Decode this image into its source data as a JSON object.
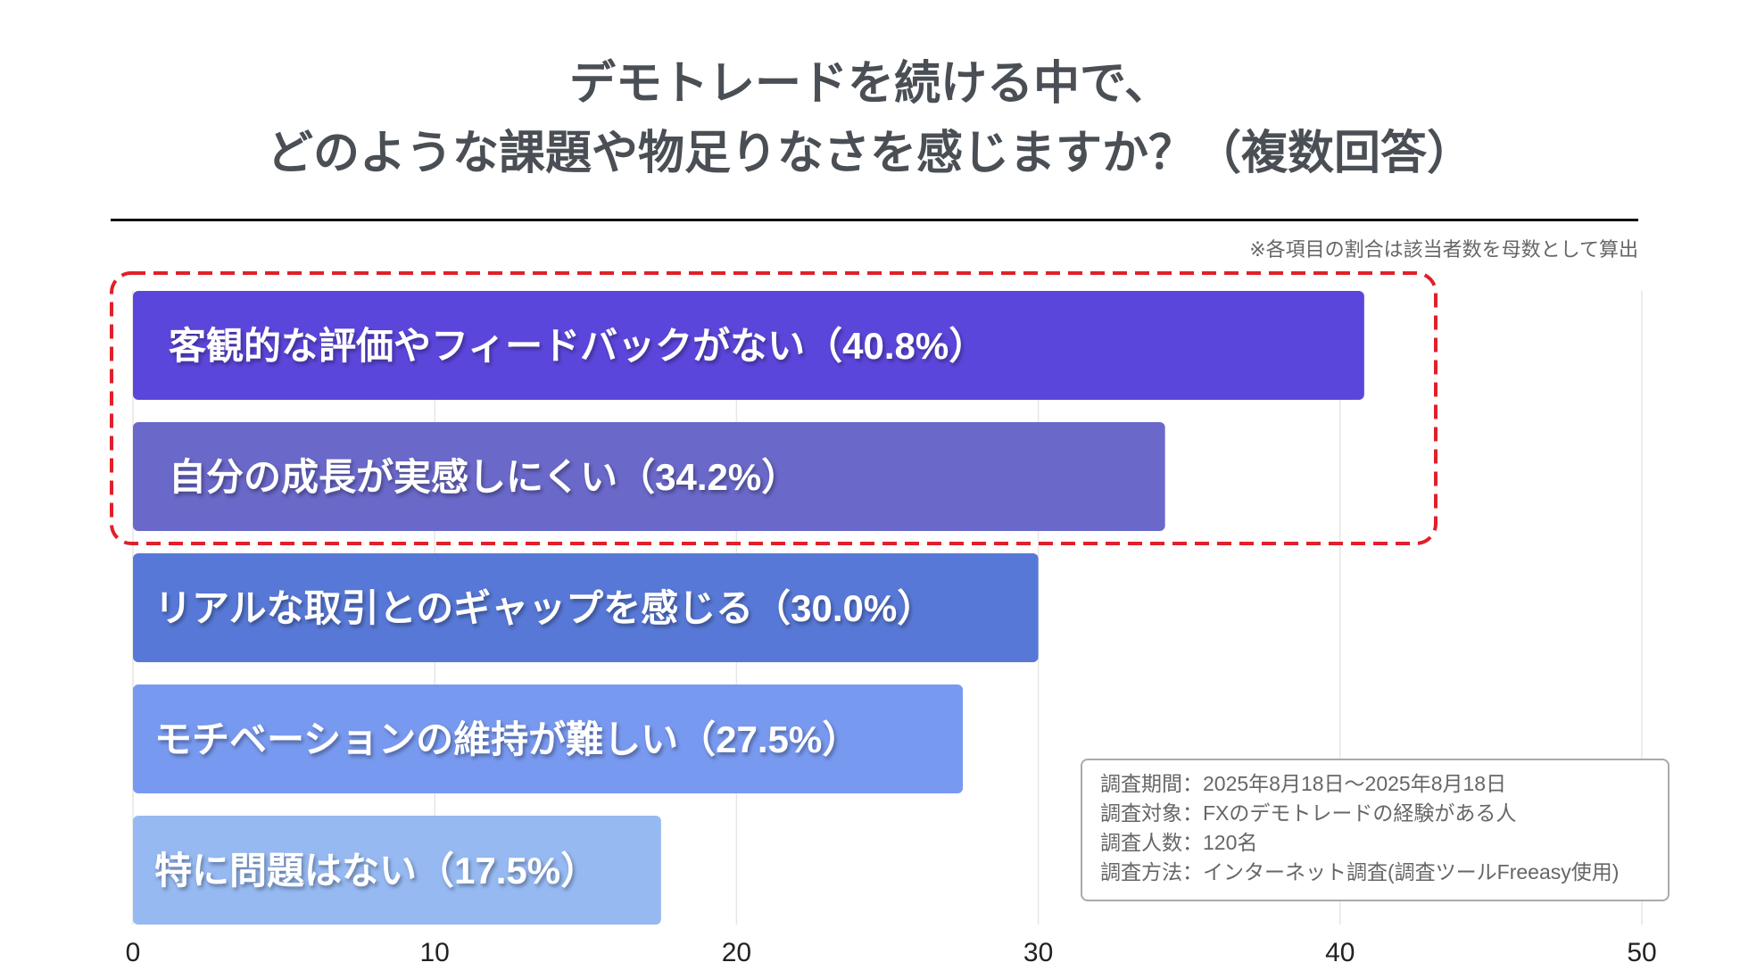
{
  "chart_data": {
    "type": "bar",
    "orientation": "horizontal",
    "title": [
      "デモトレードを続ける中で、",
      "どのような課題や物足りなさを感じますか？（複数回答）"
    ],
    "note": "※各項目の割合は該当者数を母数として算出",
    "categories": [
      "客観的な評価やフィードバックがない（40.8%）",
      "自分の成長が実感しにくい（34.2%）",
      "リアルな取引とのギャップを感じる（30.0%）",
      "モチベーションの維持が難しい（27.5%）",
      "特に問題はない（17.5%）"
    ],
    "values": [
      40.8,
      34.2,
      30.0,
      27.5,
      17.5
    ],
    "colors": [
      "#5b46db",
      "#6a68c9",
      "#5778d6",
      "#7899f0",
      "#96b9f2"
    ],
    "highlighted": [
      0,
      1
    ],
    "highlight_color": "#e0202a",
    "xlim": [
      0,
      50
    ],
    "xticks": [
      "0",
      "10",
      "20",
      "30",
      "40",
      "50"
    ],
    "xlabel": "",
    "ylabel": "",
    "grid": true
  },
  "legend": {
    "lines": [
      "調査期間：2025年8月18日～2025年8月18日",
      "調査対象：FXのデモトレードの経験がある人",
      "調査人数：120名",
      "調査方法：インターネット調査(調査ツールFreeasy使用)"
    ]
  }
}
